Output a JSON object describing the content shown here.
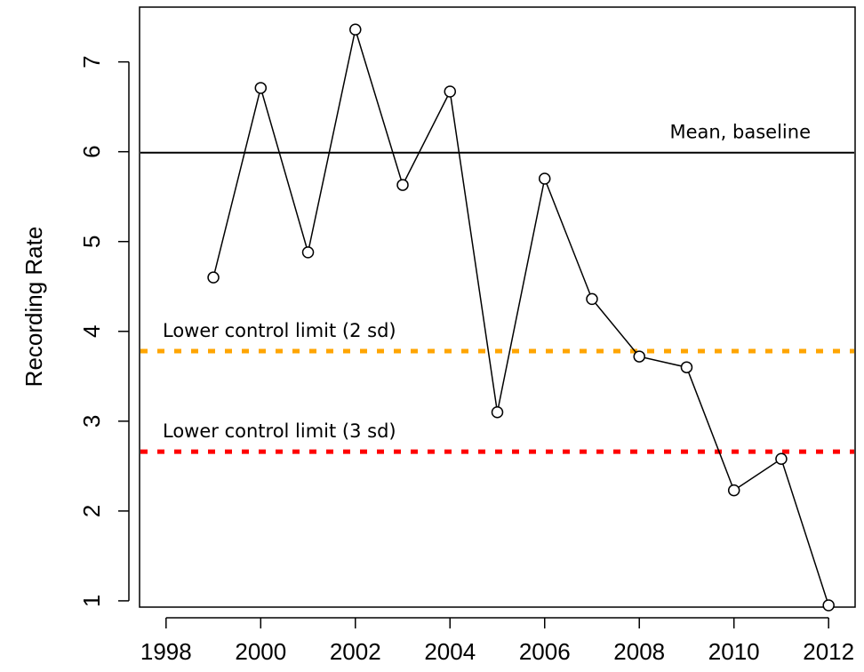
{
  "chart_data": {
    "type": "line",
    "ylabel": "Recording Rate",
    "x": [
      1999,
      2000,
      2001,
      2002,
      2003,
      2004,
      2005,
      2006,
      2007,
      2008,
      2009,
      2010,
      2011,
      2012
    ],
    "series": [
      {
        "name": "Recording Rate",
        "color": "#000000",
        "values": [
          4.6,
          6.71,
          4.88,
          7.36,
          5.63,
          6.67,
          3.1,
          5.7,
          4.36,
          3.72,
          3.6,
          2.23,
          2.58,
          0.95
        ]
      }
    ],
    "reference_lines": [
      {
        "label": "Mean, baseline",
        "value": 5.99,
        "color": "#000000",
        "style": "solid"
      },
      {
        "label": "Lower control limit (2 sd)",
        "value": 3.78,
        "color": "#ffa500",
        "style": "dotted"
      },
      {
        "label": "Lower control limit (3 sd)",
        "value": 2.66,
        "color": "#ff0000",
        "style": "dotted"
      }
    ],
    "xlim": [
      1997.44,
      2012.56
    ],
    "xticks": [
      1998,
      2000,
      2002,
      2004,
      2006,
      2008,
      2010,
      2012
    ],
    "ylim": [
      0.93,
      7.61
    ],
    "yticks": [
      1,
      2,
      3,
      4,
      5,
      6,
      7
    ]
  }
}
